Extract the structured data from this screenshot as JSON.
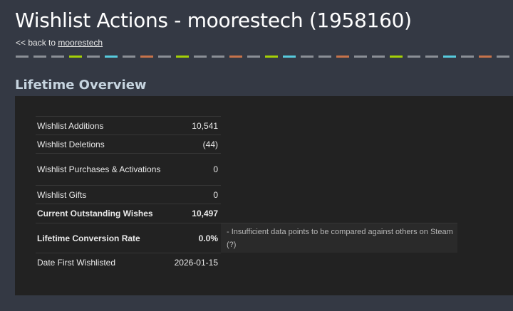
{
  "header": {
    "title": "Wishlist Actions - moorestech (1958160)",
    "back_prefix": "<< back to",
    "back_link": "moorestech"
  },
  "divider_colors": [
    "#8b8f96",
    "#8b8f96",
    "#8b8f96",
    "#a4d007",
    "#8b8f96",
    "#57cbde",
    "#8b8f96",
    "#c6734b",
    "#8b8f96",
    "#a4d007",
    "#8b8f96",
    "#8b8f96",
    "#c6734b",
    "#8b8f96",
    "#a4d007",
    "#57cbde",
    "#8b8f96",
    "#8b8f96",
    "#c6734b",
    "#8b8f96",
    "#8b8f96",
    "#a4d007",
    "#8b8f96",
    "#8b8f96",
    "#57cbde",
    "#8b8f96",
    "#c6734b",
    "#8b8f96"
  ],
  "section": {
    "title": "Lifetime Overview"
  },
  "rows": [
    {
      "label": "Wishlist Additions",
      "value": "10,541",
      "note": ""
    },
    {
      "label": "Wishlist Deletions",
      "value": "(44)",
      "note": ""
    },
    {
      "label": "Wishlist Purchases & Activations",
      "value": "0",
      "note": ""
    },
    {
      "label": "Wishlist Gifts",
      "value": "0",
      "note": ""
    },
    {
      "label": "Current Outstanding Wishes",
      "value": "10,497",
      "note": ""
    },
    {
      "label": "Lifetime Conversion Rate",
      "value": "0.0%",
      "note": "- Insufficient data points to be compared against others on Steam",
      "note_link": "(?)"
    },
    {
      "label": "Date First Wishlisted",
      "value": "2026-01-15",
      "note": ""
    }
  ]
}
